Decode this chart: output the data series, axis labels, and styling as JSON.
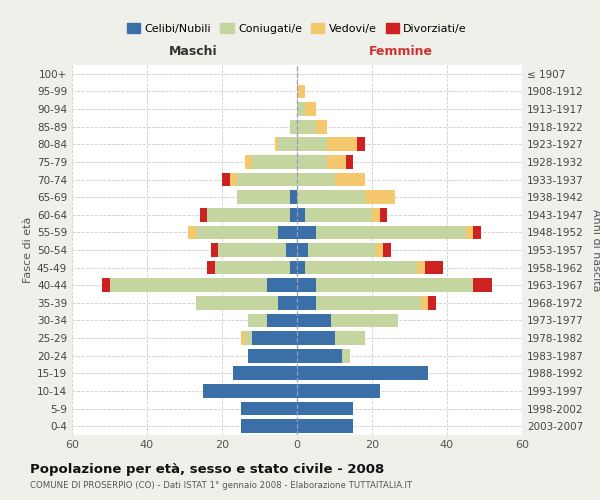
{
  "age_groups": [
    "100+",
    "95-99",
    "90-94",
    "85-89",
    "80-84",
    "75-79",
    "70-74",
    "65-69",
    "60-64",
    "55-59",
    "50-54",
    "45-49",
    "40-44",
    "35-39",
    "30-34",
    "25-29",
    "20-24",
    "15-19",
    "10-14",
    "5-9",
    "0-4"
  ],
  "birth_years": [
    "≤ 1907",
    "1908-1912",
    "1913-1917",
    "1918-1922",
    "1923-1927",
    "1928-1932",
    "1933-1937",
    "1938-1942",
    "1943-1947",
    "1948-1952",
    "1953-1957",
    "1958-1962",
    "1963-1967",
    "1968-1972",
    "1973-1977",
    "1978-1982",
    "1983-1987",
    "1988-1992",
    "1993-1997",
    "1998-2002",
    "2003-2007"
  ],
  "colors": {
    "celibi": "#3a6fa8",
    "coniugati": "#c5d5a0",
    "vedovi": "#f5c86e",
    "divorziati": "#cc2222"
  },
  "males": {
    "celibi": [
      0,
      0,
      0,
      0,
      0,
      0,
      0,
      2,
      2,
      5,
      3,
      2,
      8,
      5,
      8,
      12,
      13,
      17,
      25,
      15,
      15
    ],
    "coniugati": [
      0,
      0,
      0,
      2,
      5,
      12,
      16,
      14,
      22,
      22,
      18,
      20,
      42,
      22,
      5,
      2,
      0,
      0,
      0,
      0,
      0
    ],
    "vedovi": [
      0,
      0,
      0,
      0,
      1,
      2,
      2,
      0,
      0,
      2,
      0,
      0,
      0,
      0,
      0,
      1,
      0,
      0,
      0,
      0,
      0
    ],
    "divorziati": [
      0,
      0,
      0,
      0,
      0,
      0,
      2,
      0,
      2,
      0,
      2,
      2,
      2,
      0,
      0,
      0,
      0,
      0,
      0,
      0,
      0
    ]
  },
  "females": {
    "celibi": [
      0,
      0,
      0,
      0,
      0,
      0,
      0,
      0,
      2,
      5,
      3,
      2,
      5,
      5,
      9,
      10,
      12,
      35,
      22,
      15,
      15
    ],
    "coniugati": [
      0,
      0,
      2,
      5,
      8,
      8,
      10,
      18,
      18,
      40,
      18,
      30,
      42,
      28,
      18,
      8,
      2,
      0,
      0,
      0,
      0
    ],
    "vedovi": [
      0,
      2,
      3,
      3,
      8,
      5,
      8,
      8,
      2,
      2,
      2,
      2,
      0,
      2,
      0,
      0,
      0,
      0,
      0,
      0,
      0
    ],
    "divorziati": [
      0,
      0,
      0,
      0,
      2,
      2,
      0,
      0,
      2,
      2,
      2,
      5,
      5,
      2,
      0,
      0,
      0,
      0,
      0,
      0,
      0
    ]
  },
  "title": "Popolazione per età, sesso e stato civile - 2008",
  "subtitle": "COMUNE DI PROSERPIO (CO) - Dati ISTAT 1° gennaio 2008 - Elaborazione TUTTAITALIA.IT",
  "xlabel_left": "Maschi",
  "xlabel_right": "Femmine",
  "ylabel_left": "Fasce di età",
  "ylabel_right": "Anni di nascita",
  "xlim": 60,
  "legend_labels": [
    "Celibi/Nubili",
    "Coniugati/e",
    "Vedovi/e",
    "Divorziati/e"
  ],
  "bg_color": "#f0f0eb",
  "plot_bg": "#ffffff"
}
